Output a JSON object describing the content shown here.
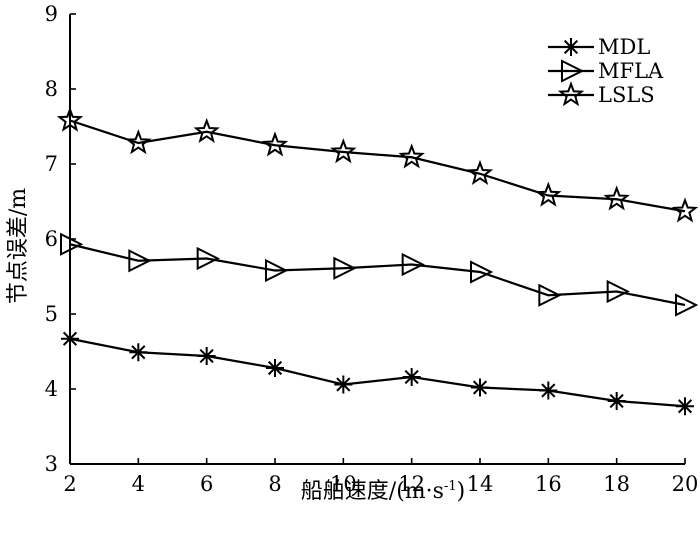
{
  "chart_data": {
    "type": "line",
    "title": "",
    "xlabel": "船舶速度/(m·s",
    "xlabel_sup": "-1",
    "xlabel_end": ")",
    "ylabel": "节点误差/m",
    "x": [
      2,
      4,
      6,
      8,
      10,
      12,
      14,
      16,
      18,
      20
    ],
    "xlim": [
      2,
      20
    ],
    "ylim": [
      3,
      9
    ],
    "x_ticks": [
      "2",
      "4",
      "6",
      "8",
      "10",
      "12",
      "14",
      "16",
      "18",
      "20"
    ],
    "y_ticks": [
      "3",
      "4",
      "5",
      "6",
      "7",
      "8",
      "9"
    ],
    "grid": false,
    "legend_position": "top-right",
    "series": [
      {
        "name": "MDL",
        "marker": "asterisk",
        "values": [
          4.67,
          4.49,
          4.44,
          4.28,
          4.06,
          4.16,
          4.02,
          3.98,
          3.84,
          3.77
        ]
      },
      {
        "name": "MFLA",
        "marker": "triangle-right",
        "values": [
          5.93,
          5.71,
          5.74,
          5.58,
          5.61,
          5.66,
          5.56,
          5.25,
          5.3,
          5.12
        ]
      },
      {
        "name": "LSLS",
        "marker": "star",
        "values": [
          7.58,
          7.28,
          7.43,
          7.25,
          7.16,
          7.09,
          6.87,
          6.58,
          6.53,
          6.37
        ]
      }
    ]
  }
}
